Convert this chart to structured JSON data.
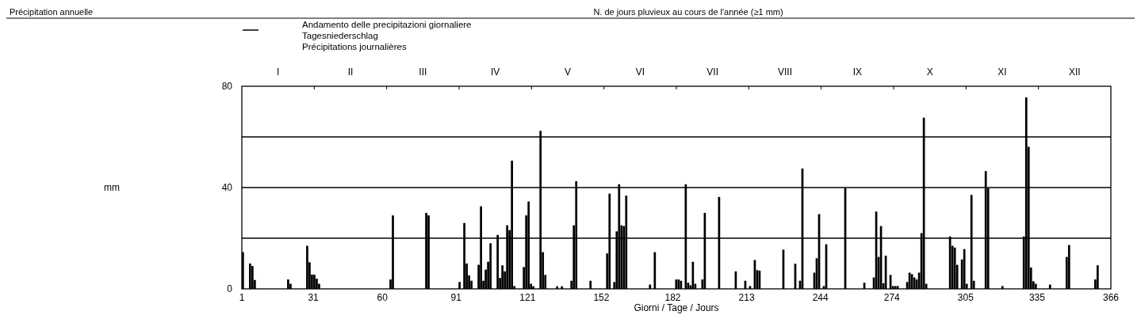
{
  "chart_data": {
    "type": "bar",
    "annotations": [
      "Précipitation annuelle",
      "N. de jours pluvieux au cours de l'année (≥1 mm)",
      "mm",
      "I",
      "II",
      "III",
      "IV",
      "V",
      "VI",
      "VII",
      "VIII",
      "IX",
      "X",
      "XI",
      "XII"
    ],
    "xlabel": "Giorni / Tage / Jours",
    "x": [
      1,
      4,
      5,
      6,
      20,
      21,
      28,
      29,
      30,
      31,
      32,
      33,
      63,
      64,
      78,
      79,
      92,
      94,
      95,
      96,
      97,
      100,
      101,
      102,
      103,
      104,
      105,
      108,
      109,
      110,
      111,
      112,
      113,
      114,
      115,
      119,
      120,
      121,
      122,
      123,
      126,
      127,
      128,
      133,
      135,
      139,
      140,
      141,
      147,
      154,
      155,
      157,
      158,
      159,
      160,
      161,
      162,
      172,
      174,
      183,
      184,
      185,
      187,
      188,
      189,
      190,
      191,
      194,
      195,
      201,
      208,
      212,
      214,
      216,
      217,
      218,
      228,
      233,
      235,
      236,
      241,
      242,
      243,
      245,
      246,
      254,
      262,
      266,
      267,
      268,
      269,
      270,
      271,
      273,
      274,
      275,
      276,
      280,
      281,
      282,
      283,
      284,
      285,
      286,
      287,
      288,
      298,
      299,
      300,
      301,
      303,
      304,
      305,
      307,
      308,
      313,
      314,
      320,
      329,
      330,
      331,
      332,
      333,
      334,
      340,
      347,
      348,
      359,
      360
    ],
    "series": [
      {
        "name": "Andamento delle precipitazioni giornaliere\nTagesniederschlag\nPrécipitations journalières",
        "color": "#000000",
        "values": [
          14.5,
          10,
          9,
          3.5,
          3.7,
          2,
          17,
          10.5,
          5.6,
          5.6,
          4,
          2,
          3.7,
          29,
          30,
          29,
          2.7,
          26,
          10,
          5.3,
          3.2,
          9.5,
          32.6,
          3.2,
          7.6,
          10.7,
          18,
          21.3,
          4.3,
          9.3,
          6.9,
          25.1,
          23.2,
          50.6,
          1.1,
          8.6,
          29,
          34.5,
          2,
          1,
          62.4,
          14.5,
          5.5,
          1,
          1,
          3.2,
          25.1,
          42.5,
          3.2,
          14,
          37.6,
          2.7,
          22.7,
          41.3,
          25.1,
          24.8,
          36.8,
          1.7,
          14.5,
          3.7,
          3.7,
          3.2,
          41.3,
          2.4,
          1.4,
          10.7,
          2,
          3.7,
          30,
          36.3,
          6.9,
          3.2,
          1.1,
          11.4,
          7.4,
          7.2,
          15.5,
          9.9,
          3.2,
          47.5,
          6.4,
          12.1,
          29.5,
          1.1,
          17.6,
          39.7,
          2.4,
          4.5,
          30.5,
          12.6,
          24.8,
          2.2,
          13.1,
          5.5,
          1.1,
          1.1,
          1.1,
          2.7,
          6.4,
          5.8,
          4.5,
          3.7,
          6.4,
          22,
          67.6,
          2,
          20.7,
          17,
          16.3,
          9.5,
          11.6,
          15.7,
          2,
          37.1,
          3.2,
          46.5,
          39.7,
          1.1,
          20.7,
          75.6,
          56.1,
          8.4,
          3,
          2,
          1.7,
          12.6,
          17.3,
          3.7,
          9.3
        ]
      }
    ],
    "xlim": [
      1,
      366
    ],
    "xticks": [
      1,
      31,
      60,
      91,
      121,
      152,
      182,
      213,
      244,
      274,
      305,
      335,
      366
    ],
    "ylim": [
      0,
      80
    ],
    "yticks": [
      0,
      {
        "value": 20,
        "label": null
      },
      40,
      {
        "value": 60,
        "label": null
      },
      80
    ],
    "grid": "y",
    "legend": "top"
  }
}
